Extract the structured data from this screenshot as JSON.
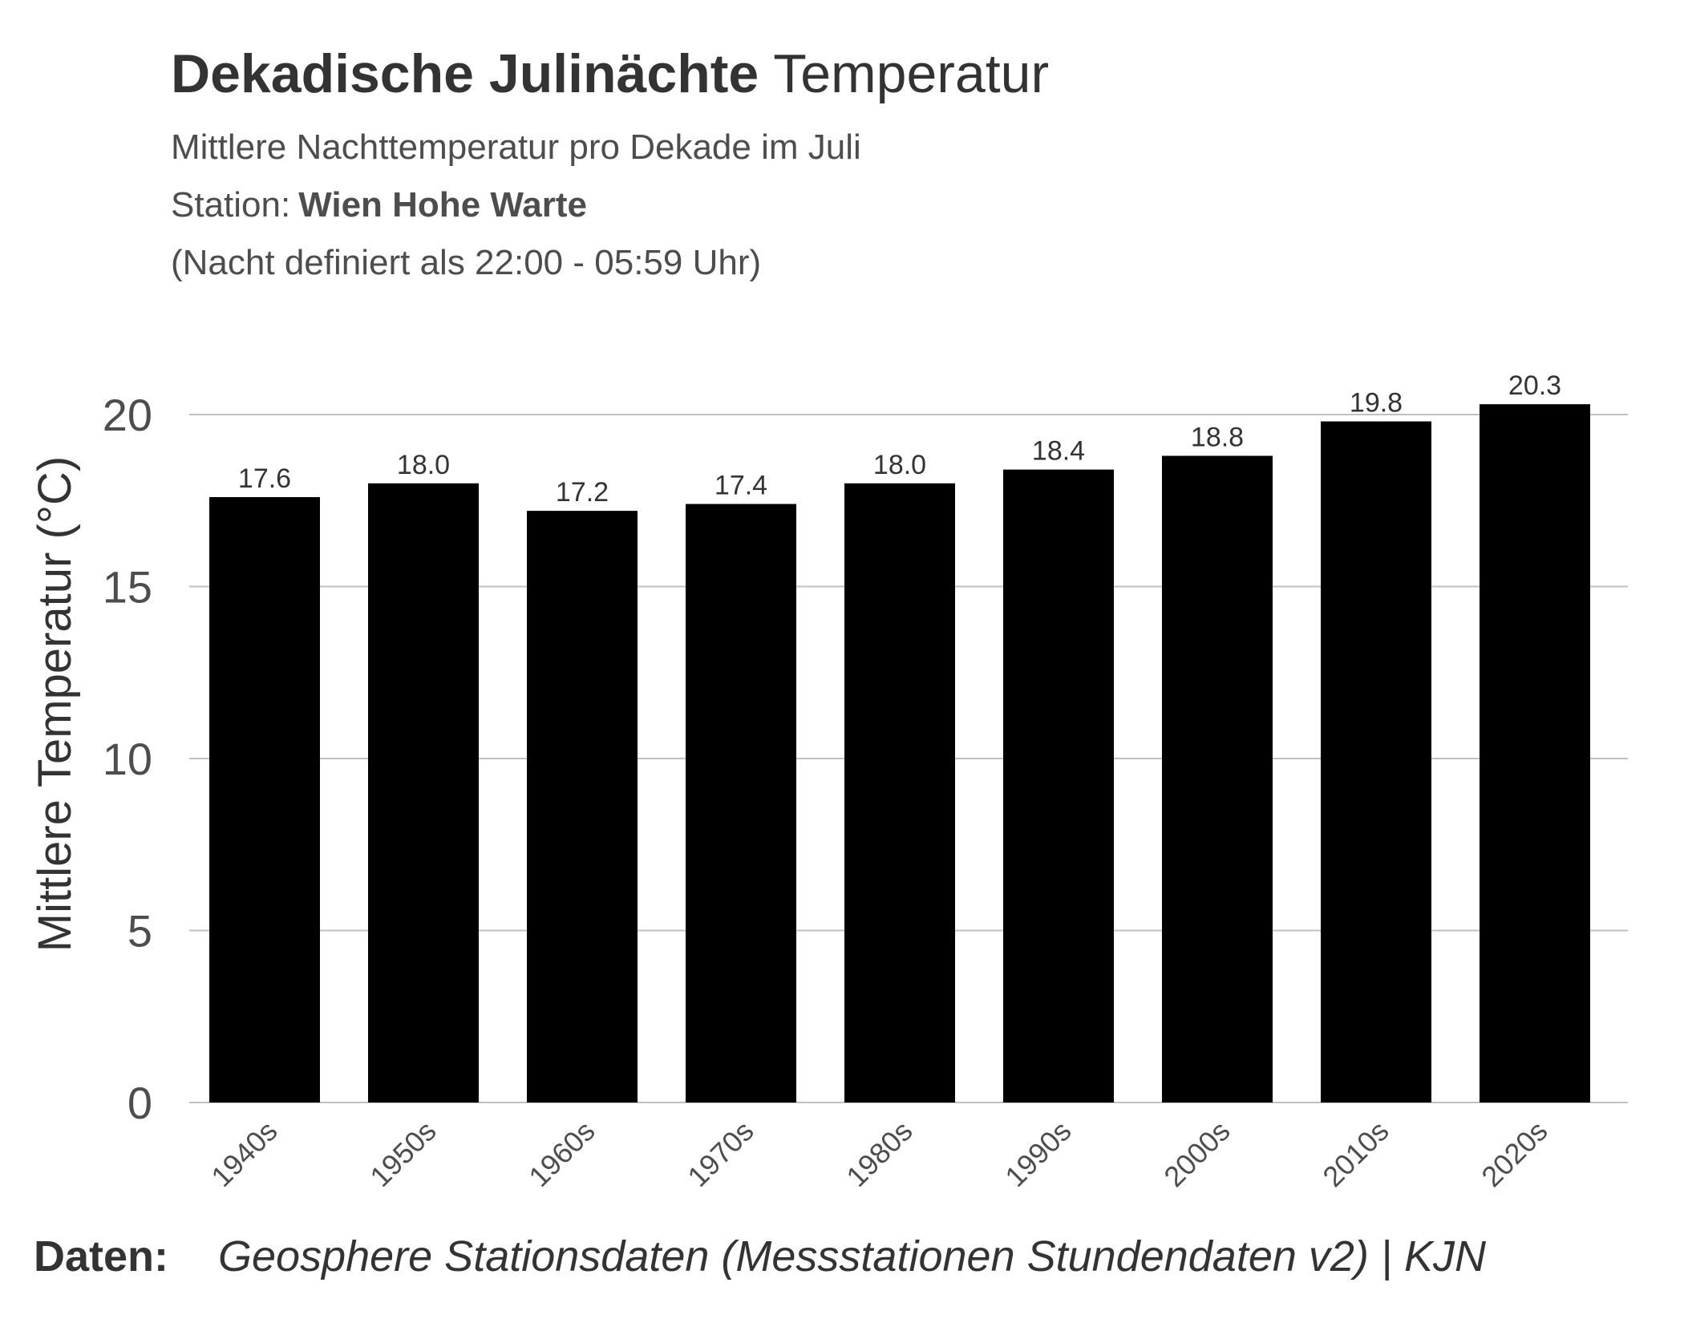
{
  "header": {
    "title_bold": "Dekadische Julinächte",
    "title_regular": "Temperatur",
    "subtitle_line1": "Mittlere Nachttemperatur pro Dekade im Juli",
    "subtitle_station_prefix": "Station:",
    "subtitle_station_name": "Wien Hohe Warte",
    "subtitle_line3": "(Nacht definiert als 22:00 - 05:59 Uhr)"
  },
  "footer": {
    "label": "Daten:",
    "source": "Geosphere Stationsdaten (Messstationen Stundendaten v2) | KJN"
  },
  "colors": {
    "bar": "#000000",
    "grid": "#c0c0c0",
    "text": "#333333",
    "axis_text": "#4d4d4d"
  },
  "chart_data": {
    "type": "bar",
    "title": "Dekadische Julinächte Temperatur",
    "xlabel": "",
    "ylabel": "Mittlere Temperatur (°C)",
    "categories": [
      "1940s",
      "1950s",
      "1960s",
      "1970s",
      "1980s",
      "1990s",
      "2000s",
      "2010s",
      "2020s"
    ],
    "values": [
      17.6,
      18.0,
      17.2,
      17.4,
      18.0,
      18.4,
      18.8,
      19.8,
      20.3
    ],
    "value_labels": [
      "17.6",
      "18.0",
      "17.2",
      "17.4",
      "18.0",
      "18.4",
      "18.8",
      "19.8",
      "20.3"
    ],
    "yticks": [
      0,
      5,
      10,
      15,
      20
    ],
    "ytick_labels": [
      "0",
      "5",
      "10",
      "15",
      "20"
    ],
    "ylim": [
      0,
      20.3
    ],
    "grid": true,
    "legend": "none"
  }
}
